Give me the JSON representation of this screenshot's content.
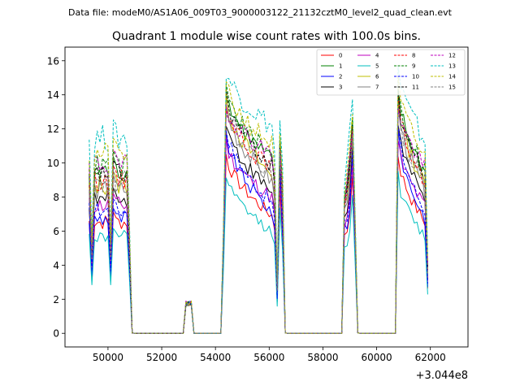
{
  "header": {
    "data_file": "Data file: modeM0/AS1A06_009T03_9000003122_21132cztM0_level2_quad_clean.evt"
  },
  "chart_data": {
    "type": "line",
    "title": "Quadrant 1 module wise count rates with 100.0s bins.",
    "xlabel": "",
    "ylabel": "",
    "x_offset_label": "+3.044e8",
    "xlim": [
      48400,
      63400
    ],
    "ylim": [
      -0.8,
      16.8
    ],
    "x_ticks": [
      50000,
      52000,
      54000,
      56000,
      58000,
      60000,
      62000
    ],
    "x_tick_labels": [
      "50000",
      "52000",
      "54000",
      "56000",
      "58000",
      "60000",
      "62000"
    ],
    "y_ticks": [
      0,
      2,
      4,
      6,
      8,
      10,
      12,
      14,
      16
    ],
    "y_tick_labels": [
      "0",
      "2",
      "4",
      "6",
      "8",
      "10",
      "12",
      "14",
      "16"
    ],
    "grid": false,
    "legend_position": "top-right",
    "legend_columns": 4,
    "x_start": 49300,
    "bin_width": 100,
    "segments": [
      {
        "x_start": 49300,
        "length": 15,
        "valley_indices": [
          1,
          8
        ],
        "trend": "flat"
      },
      {
        "x_start": 50800,
        "length": 2,
        "transition": "drop-to-zero"
      },
      {
        "x_start": 51000,
        "length": 19,
        "level": 0
      },
      {
        "x_start": 52900,
        "length": 3,
        "level": 1.9
      },
      {
        "x_start": 53200,
        "length": 11,
        "level": 0
      },
      {
        "x_start": 54300,
        "length": 1,
        "transition": "rise"
      },
      {
        "x_start": 54400,
        "length": 18,
        "peak_index": 0,
        "trend": "decay"
      },
      {
        "x_start": 56200,
        "length": 5,
        "shape": "dip-spike-drop"
      },
      {
        "x_start": 56700,
        "length": 21,
        "level": 0
      },
      {
        "x_start": 58800,
        "length": 6,
        "shape": "rise-peak-drop"
      },
      {
        "x_start": 59400,
        "length": 14,
        "level": 0
      },
      {
        "x_start": 60800,
        "length": 12,
        "peak_index": 0,
        "trend": "decay-to-end"
      }
    ],
    "series": [
      {
        "name": "0",
        "color": "#ff0000",
        "style": "solid",
        "base": 6.6,
        "peak": 10.5
      },
      {
        "name": "1",
        "color": "#008000",
        "style": "solid",
        "base": 9.6,
        "peak": 14.2
      },
      {
        "name": "2",
        "color": "#0000ff",
        "style": "solid",
        "base": 6.8,
        "peak": 11.7
      },
      {
        "name": "3",
        "color": "#000000",
        "style": "solid",
        "base": 7.9,
        "peak": 12.4
      },
      {
        "name": "4",
        "color": "#bf00bf",
        "style": "solid",
        "base": 7.6,
        "peak": 11.2
      },
      {
        "name": "5",
        "color": "#00bfbf",
        "style": "solid",
        "base": 5.7,
        "peak": 9.2
      },
      {
        "name": "6",
        "color": "#bfbf00",
        "style": "solid",
        "base": 8.8,
        "peak": 13.8
      },
      {
        "name": "7",
        "color": "#808080",
        "style": "solid",
        "base": 8.5,
        "peak": 13.3
      },
      {
        "name": "8",
        "color": "#ff0000",
        "style": "dashed",
        "base": 9.1,
        "peak": 13.6
      },
      {
        "name": "9",
        "color": "#008000",
        "style": "dashed",
        "base": 9.9,
        "peak": 14.4
      },
      {
        "name": "10",
        "color": "#0000ff",
        "style": "dashed",
        "base": 7.3,
        "peak": 12.1
      },
      {
        "name": "11",
        "color": "#000000",
        "style": "dashed",
        "base": 9.4,
        "peak": 13.9
      },
      {
        "name": "12",
        "color": "#bf00bf",
        "style": "dashed",
        "base": 10.0,
        "peak": 13.5
      },
      {
        "name": "13",
        "color": "#00bfbf",
        "style": "dashed",
        "base": 11.6,
        "peak": 15.6
      },
      {
        "name": "14",
        "color": "#bfbf00",
        "style": "dashed",
        "base": 10.6,
        "peak": 14.6
      },
      {
        "name": "15",
        "color": "#808080",
        "style": "dashed",
        "base": 9.0,
        "peak": 13.2
      }
    ]
  }
}
